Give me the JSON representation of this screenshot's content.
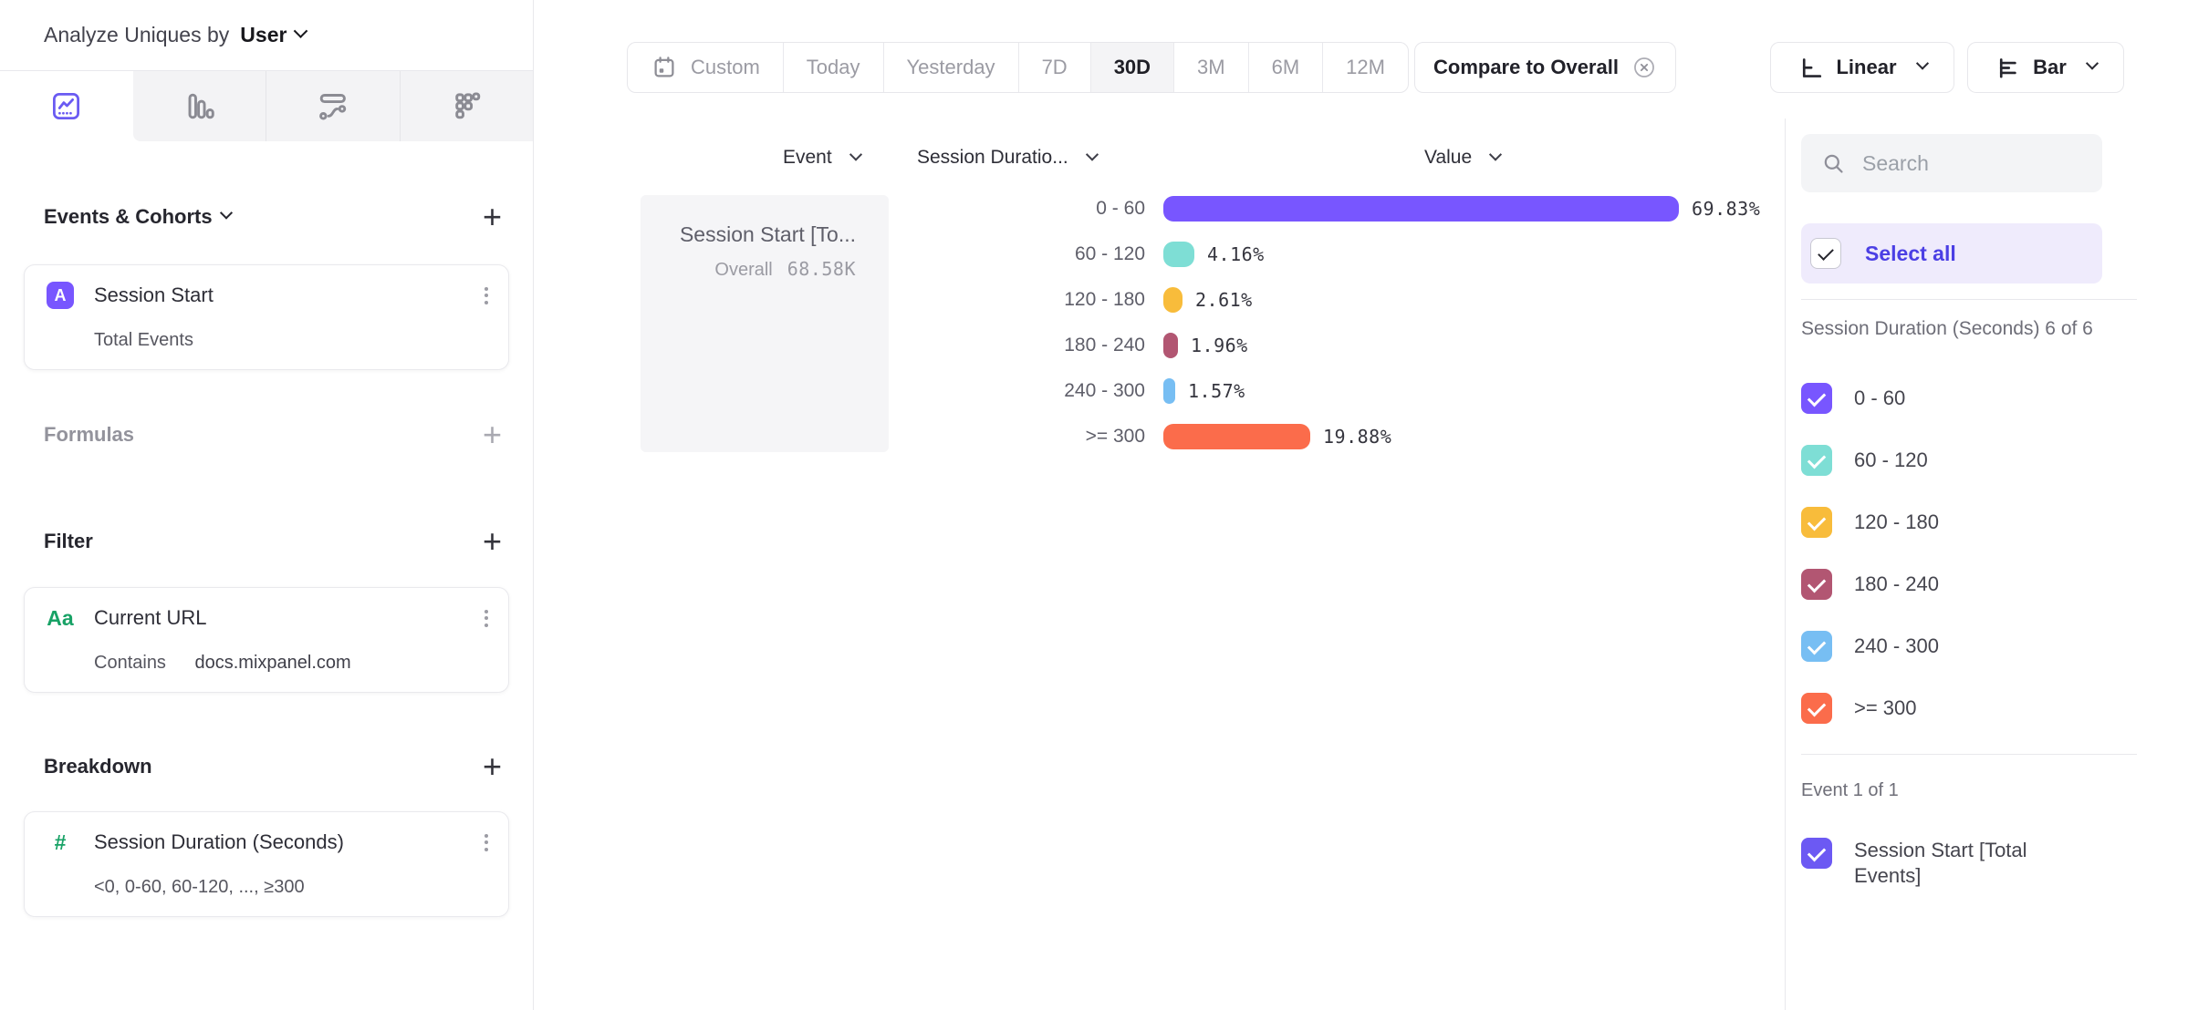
{
  "sidebar": {
    "analyze_label": "Analyze Uniques by",
    "analyze_value": "User",
    "tab_icons": [
      "insights-chart",
      "funnels",
      "flows",
      "retention"
    ],
    "sections": {
      "events": {
        "title": "Events & Cohorts"
      },
      "event_card": {
        "badge": "A",
        "title": "Session Start",
        "subtitle": "Total Events"
      },
      "formulas": {
        "title": "Formulas"
      },
      "filter": {
        "title": "Filter"
      },
      "filter_card": {
        "badge": "Aa",
        "title": "Current URL",
        "operator": "Contains",
        "value": "docs.mixpanel.com"
      },
      "breakdown": {
        "title": "Breakdown"
      },
      "breakdown_card": {
        "badge": "#",
        "title": "Session Duration (Seconds)",
        "subtitle": "<0, 0-60, 60-120, ..., ≥300"
      }
    }
  },
  "topbar": {
    "date_ranges": [
      "Custom",
      "Today",
      "Yesterday",
      "7D",
      "30D",
      "3M",
      "6M",
      "12M"
    ],
    "selected_range": "30D",
    "compare_label": "Compare to Overall",
    "scale_label": "Linear",
    "chart_type_label": "Bar"
  },
  "chart_headers": {
    "event": "Event",
    "breakdown": "Session Duratio...",
    "value": "Value"
  },
  "event_cell": {
    "title": "Session Start [To...",
    "overall_label": "Overall",
    "overall_value": "68.58K"
  },
  "chart_data": {
    "type": "bar",
    "orientation": "horizontal",
    "title": "",
    "xlabel": "Value",
    "unit": "%",
    "xlim": [
      0,
      100
    ],
    "categories": [
      "0 - 60",
      "60 - 120",
      "120 - 180",
      "180 - 240",
      "240 - 300",
      ">= 300"
    ],
    "values": [
      69.83,
      4.16,
      2.61,
      1.96,
      1.57,
      19.88
    ],
    "value_labels": [
      "69.83%",
      "4.16%",
      "2.61%",
      "1.96%",
      "1.57%",
      "19.88%"
    ],
    "colors": [
      "#7856FF",
      "#7EDED5",
      "#F8BC3B",
      "#B25672",
      "#77BEF3",
      "#FB6C4B"
    ],
    "series_name": "Session Start [Total Events]",
    "overall_value": "68.58K",
    "legend_position": "right-panel",
    "grid": false
  },
  "rightbar": {
    "search_placeholder": "Search",
    "select_all_label": "Select all",
    "group_label": "Session Duration (Seconds) 6 of 6",
    "items": [
      {
        "label": "0 - 60",
        "color": "#7856FF",
        "checked": true
      },
      {
        "label": "60 - 120",
        "color": "#7EDED5",
        "checked": true
      },
      {
        "label": "120 - 180",
        "color": "#F8BC3B",
        "checked": true
      },
      {
        "label": "180 - 240",
        "color": "#B25672",
        "checked": true
      },
      {
        "label": "240 - 300",
        "color": "#77BEF3",
        "checked": true
      },
      {
        "label": ">= 300",
        "color": "#FB6C4B",
        "checked": true
      }
    ],
    "event_group_label": "Event 1 of 1",
    "event_item": {
      "label": "Session Start [Total Events]",
      "color": "#6C59F3",
      "checked": true
    }
  },
  "colors": {
    "accent": "#7856FF",
    "select_all_bg": "#EFEBFC",
    "select_all_text": "#4B3FE4",
    "divider": "#E8E8EC"
  }
}
